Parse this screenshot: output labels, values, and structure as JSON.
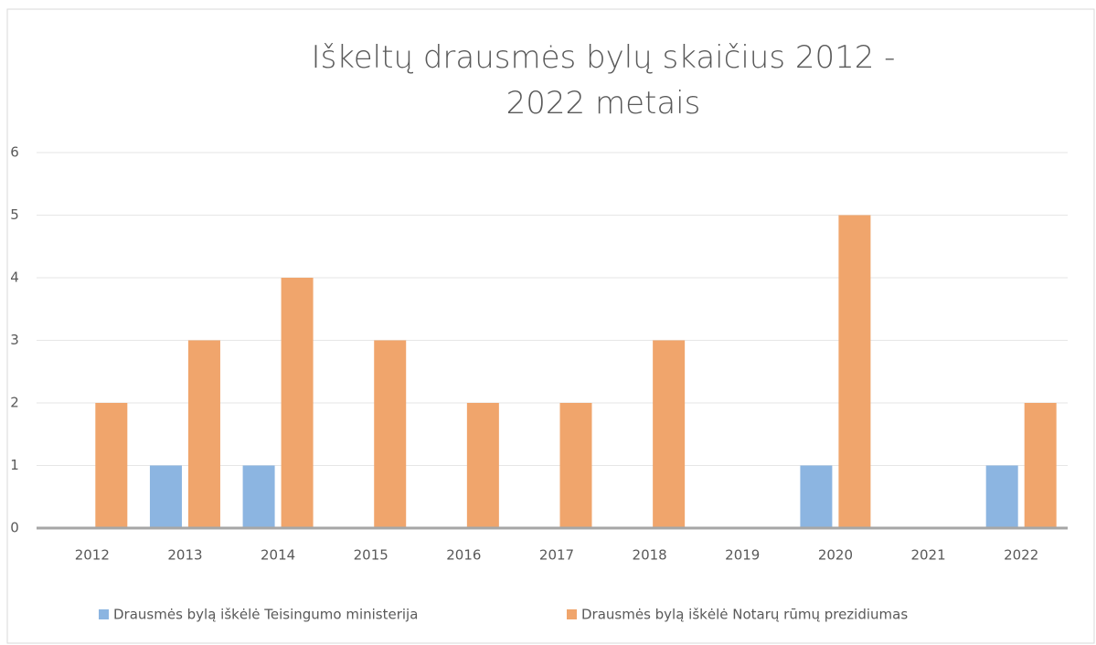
{
  "chart_data": {
    "type": "bar",
    "title": "Iškeltų drausmės bylų skaičius 2012 - 2022 metais",
    "categories": [
      "2012",
      "2013",
      "2014",
      "2015",
      "2016",
      "2017",
      "2018",
      "2019",
      "2020",
      "2021",
      "2022"
    ],
    "series": [
      {
        "name": "Drausmės bylą iškėlė Teisingumo ministerija",
        "color": "#8cb5e1",
        "values": [
          0,
          1,
          1,
          0,
          0,
          0,
          0,
          0,
          1,
          0,
          1
        ]
      },
      {
        "name": "Drausmės bylą iškėlė Notarų rūmų prezidiumas",
        "color": "#f0a56c",
        "values": [
          2,
          3,
          4,
          3,
          2,
          2,
          3,
          0,
          5,
          0,
          2
        ]
      }
    ],
    "ylim": [
      0,
      6
    ],
    "yticks": [
      0,
      1,
      2,
      3,
      4,
      5,
      6
    ],
    "grid": true,
    "legend": "bottom"
  }
}
